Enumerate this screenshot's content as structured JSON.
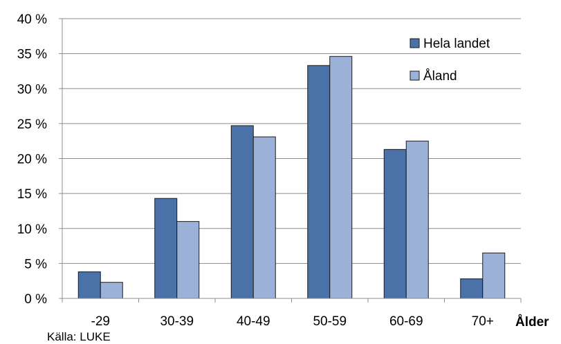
{
  "chart_data": {
    "type": "bar",
    "categories": [
      "-29",
      "30-39",
      "40-49",
      "50-59",
      "60-69",
      "70+"
    ],
    "series": [
      {
        "name": "Hela landet",
        "values": [
          3.8,
          14.3,
          24.7,
          33.3,
          21.3,
          2.8
        ],
        "color": "#4A72A8"
      },
      {
        "name": "Åland",
        "values": [
          2.3,
          11.0,
          23.1,
          34.6,
          22.5,
          6.5
        ],
        "color": "#9CB1D7"
      }
    ],
    "xlabel": "Ålder",
    "ylabel": "",
    "ylim": [
      0,
      40
    ],
    "yticks": [
      0,
      5,
      10,
      15,
      20,
      25,
      30,
      35,
      40
    ],
    "ytick_labels": [
      "0 %",
      "5 %",
      "10 %",
      "15 %",
      "20 %",
      "25 %",
      "30 %",
      "35 %",
      "40 %"
    ],
    "grid": true,
    "legend_position": "top-right",
    "source": "Källa: LUKE"
  }
}
